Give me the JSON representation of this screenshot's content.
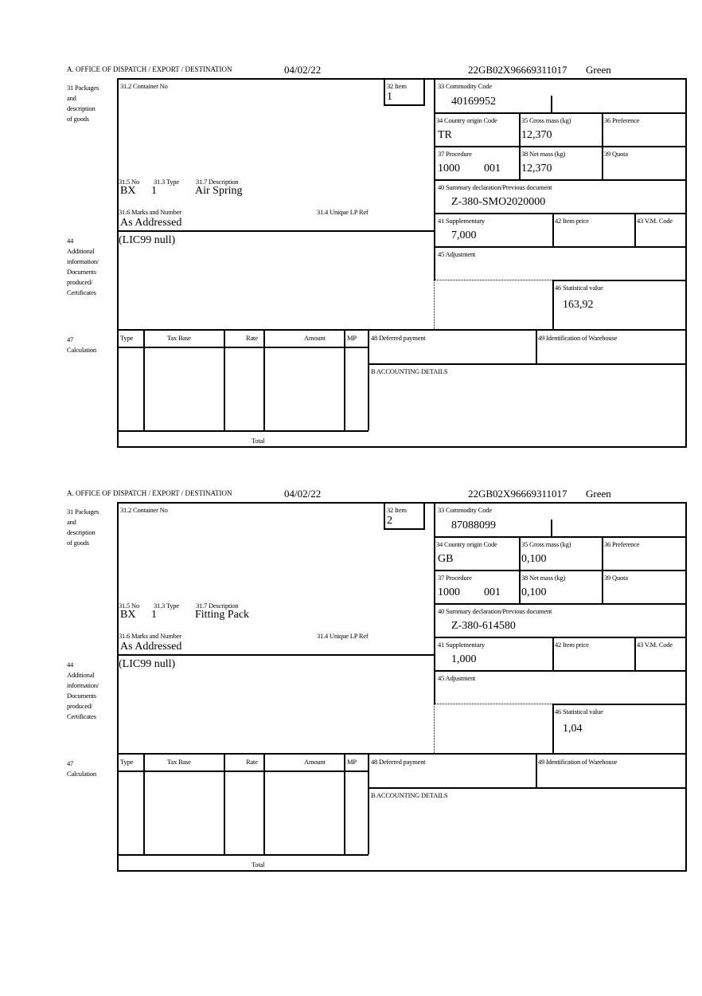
{
  "forms": [
    {
      "header": {
        "office": "A. OFFICE OF DISPATCH / EXPORT / DESTINATION",
        "date": "04/02/22",
        "reference": "22GB02X96669311017",
        "route": "Green"
      },
      "labels": {
        "packages": "31 Packages\nand\ndescription\nof goods",
        "container": "31.2 Container No",
        "item": "32 Item",
        "no": "31.5 No",
        "type": "31.3 Type",
        "description": "31.7 Description",
        "marks": "31.6 Marks and Number",
        "unique_ref": "31.4 Unique LP Ref",
        "additional": "44\nAdditional\ninformation/\nDocuments\nproduced/\nCertificates",
        "commodity": "33 Commodity Code",
        "country": "34 Country origin Code",
        "gross": "35 Gross mass (kg)",
        "preference": "36 Preference",
        "procedure": "37 Procedure",
        "net": "38 Net mass (kg)",
        "quota": "39 Quota",
        "summary": "40 Summary declaration/Previous document",
        "supplementary": "41 Supplementary",
        "item_price": "42 Item price",
        "vm_code": "43 V.M. Code",
        "adjustment": "45 Adjustment",
        "statistical": "46 Statistical value",
        "calculation": "47\nCalculation",
        "col_type": "Type",
        "col_tax_base": "Tax Base",
        "col_rate": "Rate",
        "col_amount": "Amount",
        "col_mp": "MP",
        "total": "Total",
        "deferred": "48 Deferred payment",
        "warehouse": "49 Identification of Warehouse",
        "accounting": "B ACCOUNTING DETAILS"
      },
      "values": {
        "item": "1",
        "no": "BX",
        "type": "1",
        "description": "Air Spring",
        "marks": "As Addressed",
        "additional": "(LIC99 null)",
        "commodity": "40169952",
        "country": "TR",
        "gross": "12,370",
        "procedure": "1000",
        "procedure_sub": "001",
        "net": "12,370",
        "summary": "Z-380-SMO2020000",
        "supplementary": "7,000",
        "statistical": "163,92"
      }
    },
    {
      "header": {
        "office": "A. OFFICE OF DISPATCH / EXPORT / DESTINATION",
        "date": "04/02/22",
        "reference": "22GB02X96669311017",
        "route": "Green"
      },
      "labels": {
        "packages": "31 Packages\nand\ndescription\nof goods",
        "container": "31.2 Container No",
        "item": "32 Item",
        "no": "31.5 No",
        "type": "31.3 Type",
        "description": "31.7 Description",
        "marks": "31.6 Marks and Number",
        "unique_ref": "31.4 Unique LP Ref",
        "additional": "44\nAdditional\ninformation/\nDocuments\nproduced/\nCertificates",
        "commodity": "33 Commodity Code",
        "country": "34 Country origin Code",
        "gross": "35 Gross mass (kg)",
        "preference": "36 Preference",
        "procedure": "37 Procedure",
        "net": "38 Net mass (kg)",
        "quota": "39 Quota",
        "summary": "40 Summary declaration/Previous document",
        "supplementary": "41 Supplementary",
        "item_price": "42 Item price",
        "vm_code": "43 V.M. Code",
        "adjustment": "45 Adjustment",
        "statistical": "46 Statistical value",
        "calculation": "47\nCalculation",
        "col_type": "Type",
        "col_tax_base": "Tax Base",
        "col_rate": "Rate",
        "col_amount": "Amount",
        "col_mp": "MP",
        "total": "Total",
        "deferred": "48 Deferred payment",
        "warehouse": "49 Identification of Warehouse",
        "accounting": "B ACCOUNTING DETAILS"
      },
      "values": {
        "item": "2",
        "no": "BX",
        "type": "1",
        "description": "Fitting Pack",
        "marks": "As Addressed",
        "additional": "(LIC99 null)",
        "commodity": "87088099",
        "country": "GB",
        "gross": "0,100",
        "procedure": "1000",
        "procedure_sub": "001",
        "net": "0,100",
        "summary": "Z-380-614580",
        "supplementary": "1,000",
        "statistical": "1,04"
      }
    }
  ]
}
